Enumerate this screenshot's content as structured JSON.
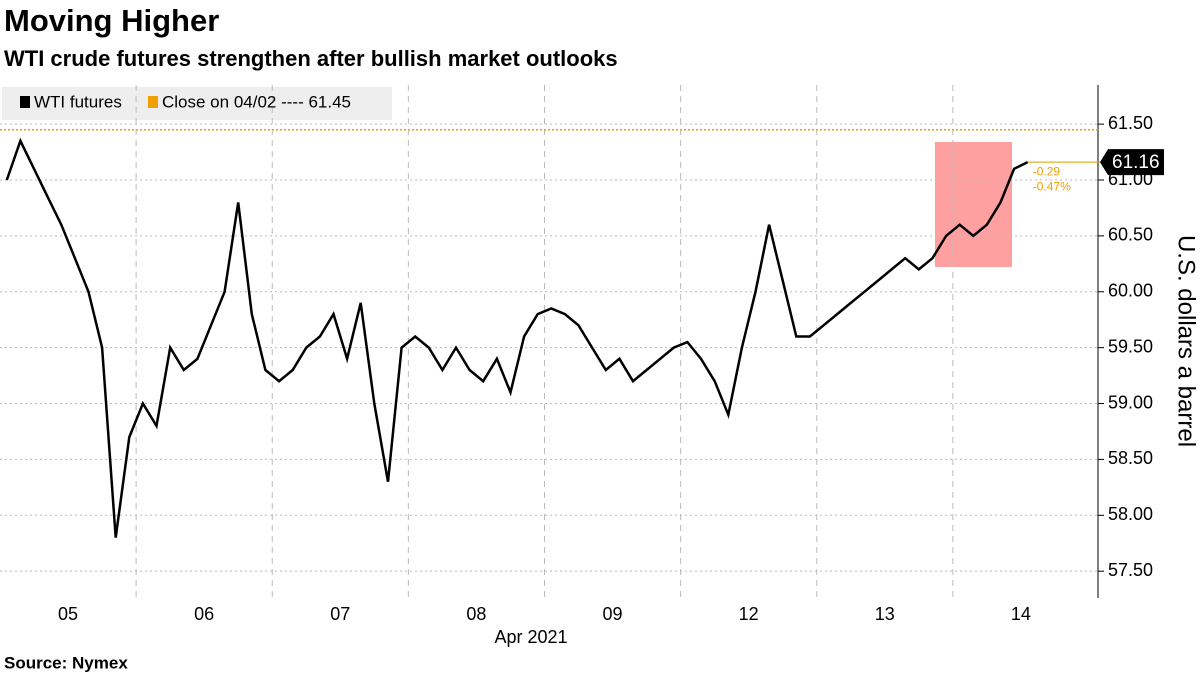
{
  "chart_data": {
    "type": "line",
    "title": "Moving Higher",
    "subtitle": "WTI crude futures strengthen after bullish market outlooks",
    "source": "Source: Nymex",
    "x_label": "Apr 2021",
    "y_label": "U.S. dollars a barrel",
    "categories": [
      null,
      null,
      null,
      null,
      null,
      "05",
      null,
      null,
      null,
      null,
      null,
      null,
      null,
      null,
      null,
      "06",
      null,
      null,
      null,
      null,
      null,
      null,
      null,
      null,
      null,
      "07",
      null,
      null,
      null,
      null,
      null,
      null,
      null,
      null,
      null,
      "08",
      null,
      null,
      null,
      null,
      null,
      null,
      null,
      null,
      null,
      "09",
      null,
      null,
      null,
      null,
      null,
      null,
      null,
      null,
      null,
      "12",
      null,
      null,
      null,
      null,
      null,
      null,
      null,
      null,
      null,
      "13",
      null,
      null,
      null,
      null,
      null,
      null,
      null,
      null,
      null,
      "14"
    ],
    "series": [
      {
        "name": "WTI futures",
        "color": "#000000",
        "values": [
          61.0,
          61.35,
          61.1,
          60.85,
          60.6,
          60.3,
          60.0,
          59.5,
          57.8,
          58.7,
          59.0,
          58.8,
          59.5,
          59.3,
          59.4,
          59.7,
          60.0,
          60.8,
          59.8,
          59.3,
          59.2,
          59.3,
          59.5,
          59.6,
          59.8,
          59.4,
          59.9,
          59.0,
          58.3,
          59.5,
          59.6,
          59.5,
          59.3,
          59.5,
          59.3,
          59.2,
          59.4,
          59.1,
          59.6,
          59.8,
          59.85,
          59.8,
          59.7,
          59.5,
          59.3,
          59.4,
          59.2,
          59.3,
          59.4,
          59.5,
          59.55,
          59.4,
          59.2,
          58.9,
          59.5,
          60.0,
          60.6,
          60.1,
          59.6,
          59.6,
          59.7,
          59.8,
          59.9,
          60.0,
          60.1,
          60.2,
          60.3,
          60.2,
          60.3,
          60.5,
          60.6,
          60.5,
          60.6,
          60.8,
          61.1,
          61.16
        ],
        "last_label": "61.16"
      }
    ],
    "reference": {
      "name": "Close on 04/02 ---- 61.45",
      "value": 61.45,
      "color": "#f0a000"
    },
    "annotations": [
      "-0.29",
      "-0.47%"
    ],
    "ylim": [
      57.26,
      61.85
    ],
    "yticks": [
      {
        "value": 57.5,
        "label": "57.50"
      },
      {
        "value": 58,
        "label": "58.00"
      },
      {
        "value": 58.5,
        "label": "58.50"
      },
      {
        "value": 59,
        "label": "59.00"
      },
      {
        "value": 59.5,
        "label": "59.50"
      },
      {
        "value": 60,
        "label": "60.00"
      },
      {
        "value": 60.5,
        "label": "60.50"
      },
      {
        "value": 61,
        "label": "61.00"
      },
      {
        "value": 61.5,
        "label": "61.50"
      }
    ],
    "grid": true
  }
}
